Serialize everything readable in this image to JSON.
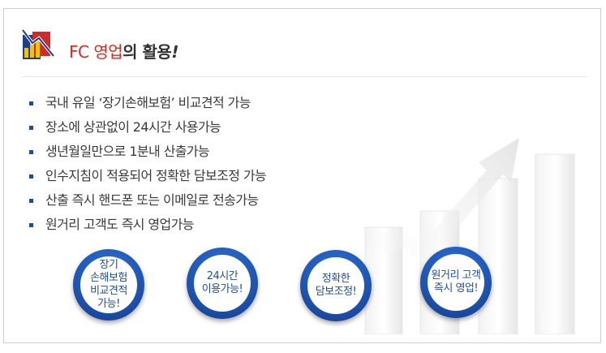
{
  "header": {
    "icon": "rising-chart-icon",
    "title_accent": "FC 영업",
    "title_rest": "의 활용",
    "title_exclaim": "!"
  },
  "features": [
    "국내 유일 ‘장기손해보험’ 비교견적 가능",
    "장소에 상관없이 24시간 사용가능",
    "생년월일만으로 1분내 산출가능",
    "인수지침이 적용되어 정확한 담보조정 가능",
    "산출 즉시 핸드폰 또는 이메일로 전송가능",
    "원거리 고객도 즉시 영업가능"
  ],
  "badges": [
    "장기\n손해보험\n비교견적\n가능!",
    "24시간\n이용가능!",
    "정확한\n담보조정!",
    "원거리 고객\n즉시 영업!"
  ],
  "colors": {
    "accent_red": "#e3261c",
    "badge_blue": "#1f56b4",
    "bullet_blue": "#1a4ca6"
  }
}
